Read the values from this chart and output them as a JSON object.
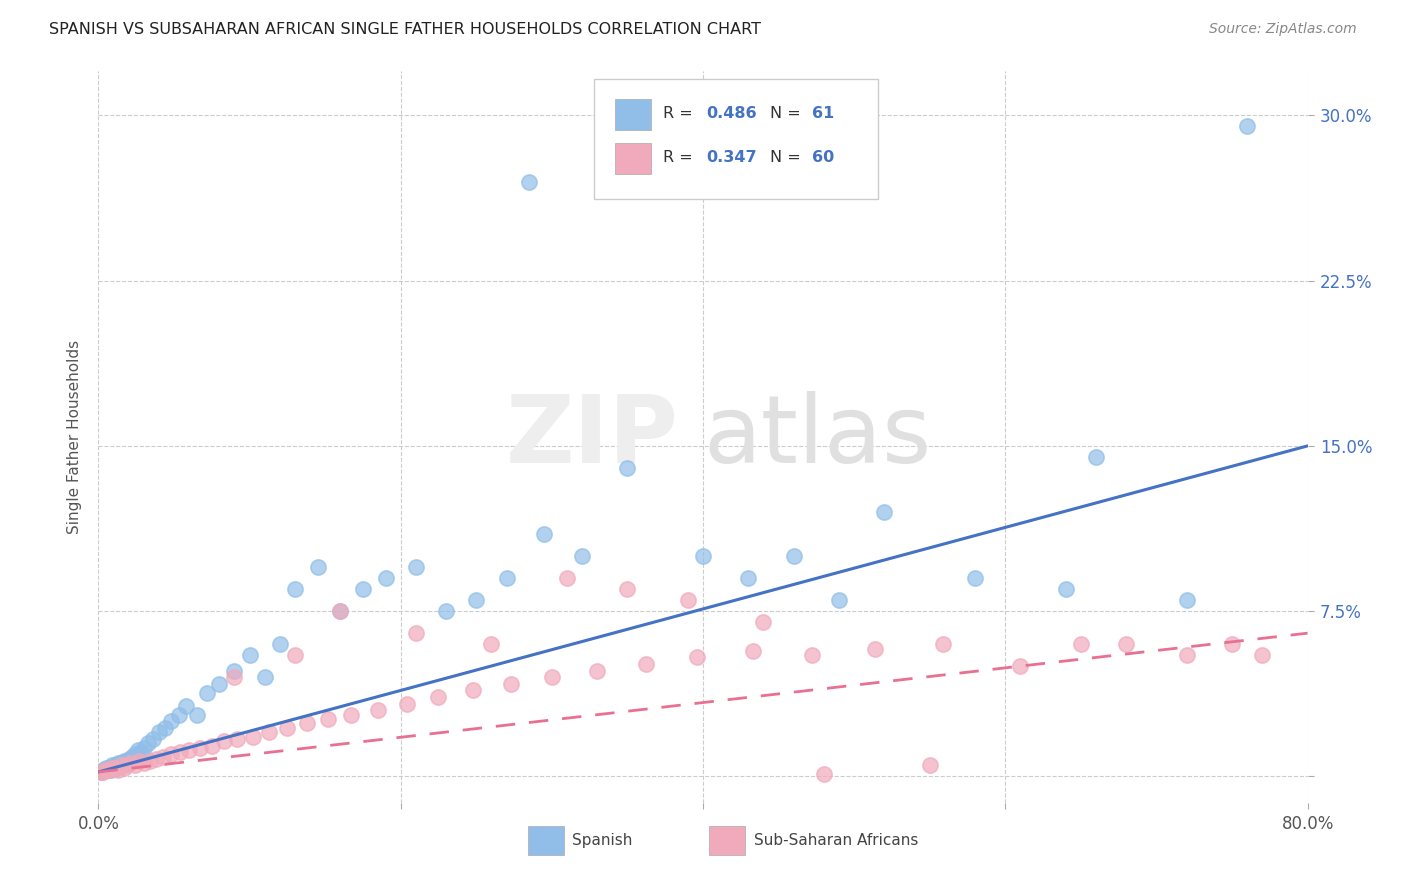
{
  "title": "SPANISH VS SUBSAHARAN AFRICAN SINGLE FATHER HOUSEHOLDS CORRELATION CHART",
  "source": "Source: ZipAtlas.com",
  "ylabel": "Single Father Households",
  "xlim": [
    0.0,
    0.8
  ],
  "ylim": [
    -0.012,
    0.32
  ],
  "ytick_positions": [
    0.0,
    0.075,
    0.15,
    0.225,
    0.3
  ],
  "ytick_labels": [
    "",
    "7.5%",
    "15.0%",
    "22.5%",
    "30.0%"
  ],
  "xtick_positions": [
    0.0,
    0.2,
    0.4,
    0.6,
    0.8
  ],
  "xtick_labels": [
    "0.0%",
    "",
    "",
    "",
    "80.0%"
  ],
  "background_color": "#ffffff",
  "blue_color": "#90BEE8",
  "pink_color": "#F0AABB",
  "line_blue": "#4472C4",
  "line_pink": "#E87090",
  "blue_line_start_y": 0.002,
  "blue_line_end_y": 0.15,
  "pink_line_start_y": 0.002,
  "pink_line_end_y": 0.065,
  "sp_x": [
    0.002,
    0.003,
    0.004,
    0.005,
    0.006,
    0.007,
    0.008,
    0.009,
    0.01,
    0.011,
    0.012,
    0.013,
    0.014,
    0.015,
    0.016,
    0.017,
    0.018,
    0.019,
    0.02,
    0.022,
    0.024,
    0.026,
    0.028,
    0.03,
    0.033,
    0.036,
    0.04,
    0.044,
    0.048,
    0.053,
    0.058,
    0.065,
    0.072,
    0.08,
    0.09,
    0.1,
    0.11,
    0.12,
    0.13,
    0.145,
    0.16,
    0.175,
    0.19,
    0.21,
    0.23,
    0.25,
    0.27,
    0.295,
    0.32,
    0.35,
    0.285,
    0.4,
    0.43,
    0.46,
    0.49,
    0.52,
    0.58,
    0.64,
    0.66,
    0.72,
    0.76
  ],
  "sp_y": [
    0.002,
    0.003,
    0.003,
    0.004,
    0.003,
    0.004,
    0.003,
    0.005,
    0.004,
    0.005,
    0.004,
    0.006,
    0.005,
    0.006,
    0.005,
    0.007,
    0.006,
    0.007,
    0.008,
    0.009,
    0.01,
    0.012,
    0.011,
    0.013,
    0.015,
    0.017,
    0.02,
    0.022,
    0.025,
    0.028,
    0.032,
    0.028,
    0.038,
    0.042,
    0.048,
    0.055,
    0.045,
    0.06,
    0.085,
    0.095,
    0.075,
    0.085,
    0.09,
    0.095,
    0.075,
    0.08,
    0.09,
    0.11,
    0.1,
    0.14,
    0.27,
    0.1,
    0.09,
    0.1,
    0.08,
    0.12,
    0.09,
    0.085,
    0.145,
    0.08,
    0.295
  ],
  "af_x": [
    0.002,
    0.003,
    0.005,
    0.007,
    0.009,
    0.011,
    0.013,
    0.015,
    0.017,
    0.019,
    0.021,
    0.024,
    0.027,
    0.03,
    0.034,
    0.038,
    0.043,
    0.048,
    0.054,
    0.06,
    0.067,
    0.075,
    0.083,
    0.092,
    0.102,
    0.113,
    0.125,
    0.138,
    0.152,
    0.167,
    0.185,
    0.204,
    0.225,
    0.248,
    0.273,
    0.3,
    0.33,
    0.362,
    0.396,
    0.433,
    0.472,
    0.514,
    0.559,
    0.48,
    0.55,
    0.61,
    0.65,
    0.68,
    0.72,
    0.75,
    0.77,
    0.44,
    0.39,
    0.35,
    0.31,
    0.26,
    0.21,
    0.16,
    0.13,
    0.09
  ],
  "af_y": [
    0.002,
    0.002,
    0.003,
    0.003,
    0.004,
    0.004,
    0.003,
    0.005,
    0.004,
    0.005,
    0.006,
    0.005,
    0.007,
    0.006,
    0.007,
    0.008,
    0.009,
    0.01,
    0.011,
    0.012,
    0.013,
    0.014,
    0.016,
    0.017,
    0.018,
    0.02,
    0.022,
    0.024,
    0.026,
    0.028,
    0.03,
    0.033,
    0.036,
    0.039,
    0.042,
    0.045,
    0.048,
    0.051,
    0.054,
    0.057,
    0.055,
    0.058,
    0.06,
    0.001,
    0.005,
    0.05,
    0.06,
    0.06,
    0.055,
    0.06,
    0.055,
    0.07,
    0.08,
    0.085,
    0.09,
    0.06,
    0.065,
    0.075,
    0.055,
    0.045
  ]
}
